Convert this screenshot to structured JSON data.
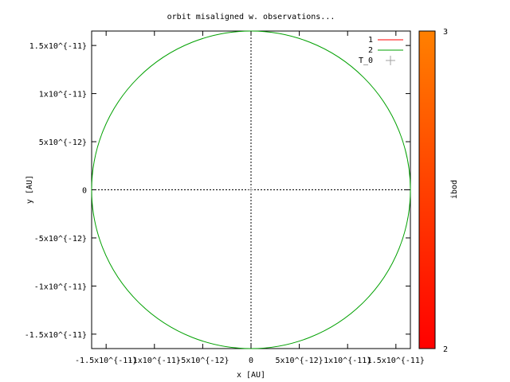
{
  "chart_data": {
    "type": "line",
    "title": "orbit misaligned w. observations...",
    "xlabel": "x [AU]",
    "ylabel": "y [AU]",
    "xlim": [
      -1.65e-11,
      1.65e-11
    ],
    "ylim": [
      -1.65e-11,
      1.65e-11
    ],
    "x_ticks": [
      {
        "value": -1.5e-11,
        "label": "-1.5x10^{-11}"
      },
      {
        "value": -1e-11,
        "label": "-1x10^{-11}"
      },
      {
        "value": -5e-12,
        "label": "-5x10^{-12}"
      },
      {
        "value": 0,
        "label": "0"
      },
      {
        "value": 5e-12,
        "label": "5x10^{-12}"
      },
      {
        "value": 1e-11,
        "label": "1x10^{-11}"
      },
      {
        "value": 1.5e-11,
        "label": "1.5x10^{-11}"
      }
    ],
    "y_ticks": [
      {
        "value": 1.5e-11,
        "label": "1.5x10^{-11}"
      },
      {
        "value": 1e-11,
        "label": "1x10^{-11}"
      },
      {
        "value": 5e-12,
        "label": "5x10^{-12}"
      },
      {
        "value": 0,
        "label": "0"
      },
      {
        "value": -5e-12,
        "label": "-5x10^{-12}"
      },
      {
        "value": -1e-11,
        "label": "-1x10^{-11}"
      },
      {
        "value": -1.5e-11,
        "label": "-1.5x10^{-11}"
      }
    ],
    "grid": false,
    "zero_axes": true,
    "legend_position": "top-right",
    "series": [
      {
        "name": "1",
        "color": "#ff0000",
        "style": "line",
        "points": []
      },
      {
        "name": "2",
        "color": "#00a000",
        "style": "line",
        "shape": "circle",
        "center": [
          0,
          0
        ],
        "radius": 1.65e-11
      },
      {
        "name": "T_0",
        "color": "#a0a0a0",
        "style": "point",
        "marker": "+",
        "points": [
          [
            0,
            0
          ]
        ]
      }
    ],
    "colorbar": {
      "label": "ibod",
      "min": 2,
      "max": 3,
      "color_min": "#ff0000",
      "color_max": "#ff8000",
      "tick_labels": [
        "2",
        "3"
      ]
    }
  }
}
